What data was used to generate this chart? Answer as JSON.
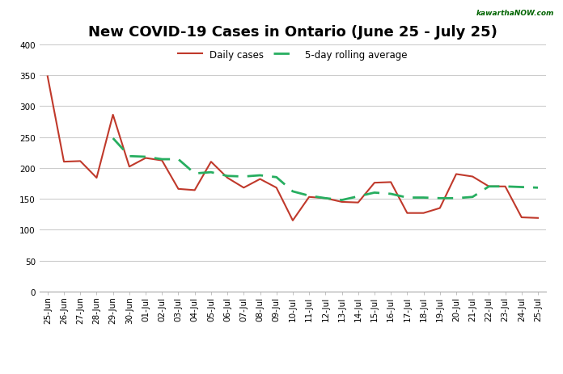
{
  "title": "New COVID-19 Cases in Ontario (June 25 - July 25)",
  "watermark": "kawarthaNOW.com",
  "labels": [
    "25-Jun",
    "26-Jun",
    "27-Jun",
    "28-Jun",
    "29-Jun",
    "30-Jun",
    "01-Jul",
    "02-Jul",
    "03-Jul",
    "04-Jul",
    "05-Jul",
    "06-Jul",
    "07-Jul",
    "08-Jul",
    "09-Jul",
    "10-Jul",
    "11-Jul",
    "12-Jul",
    "13-Jul",
    "14-Jul",
    "15-Jul",
    "16-Jul",
    "17-Jul",
    "18-Jul",
    "19-Jul",
    "20-Jul",
    "21-Jul",
    "22-Jul",
    "23-Jul",
    "24-Jul",
    "25-Jul"
  ],
  "daily_cases": [
    348,
    210,
    211,
    184,
    286,
    202,
    216,
    212,
    166,
    164,
    210,
    184,
    168,
    182,
    168,
    115,
    153,
    151,
    145,
    144,
    176,
    177,
    127,
    127,
    135,
    190,
    186,
    170,
    170,
    120,
    119
  ],
  "rolling_avg": [
    null,
    null,
    null,
    null,
    248,
    219,
    218,
    214,
    214,
    191,
    193,
    187,
    186,
    188,
    185,
    162,
    155,
    151,
    148,
    154,
    160,
    158,
    152,
    152,
    151,
    151,
    153,
    170,
    170,
    169,
    168
  ],
  "daily_color": "#c0392b",
  "rolling_color": "#27ae60",
  "bg_color": "#ffffff",
  "grid_color": "#cccccc",
  "ylim": [
    0,
    400
  ],
  "yticks": [
    0,
    50,
    100,
    150,
    200,
    250,
    300,
    350,
    400
  ],
  "legend_daily": "Daily cases",
  "legend_rolling": "5-day rolling average",
  "title_fontsize": 13,
  "tick_fontsize": 7.5,
  "legend_fontsize": 8.5
}
